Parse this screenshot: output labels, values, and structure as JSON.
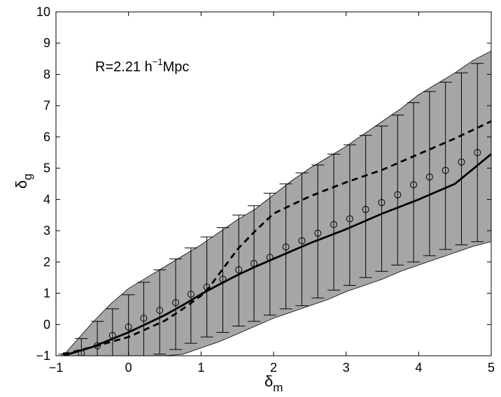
{
  "chart_data": {
    "type": "line",
    "title": "",
    "annotation": {
      "main": "R=2.21 h",
      "superscript": "−1",
      "tail": "Mpc"
    },
    "xlabel": {
      "main": "δ",
      "sub": "m"
    },
    "ylabel": {
      "main": "δ",
      "sub": "g"
    },
    "xlim": [
      -1,
      5
    ],
    "ylim": [
      -1,
      10
    ],
    "xticks": [
      -1,
      0,
      1,
      2,
      3,
      4,
      5
    ],
    "yticks": [
      -1,
      0,
      1,
      2,
      3,
      4,
      5,
      6,
      7,
      8,
      9,
      10
    ],
    "grid": false,
    "colors": {
      "band": "#a6a6a6",
      "line": "#000000"
    },
    "band": {
      "x": [
        -0.9,
        -0.75,
        -0.5,
        -0.25,
        0.0,
        0.25,
        0.5,
        0.75,
        1.0,
        1.25,
        1.5,
        1.75,
        2.0,
        2.25,
        2.5,
        2.75,
        3.0,
        3.25,
        3.5,
        3.75,
        4.0,
        4.25,
        4.5,
        4.75,
        5.0
      ],
      "upper": [
        -1.0,
        -0.6,
        0.05,
        0.65,
        1.15,
        1.5,
        1.85,
        2.2,
        2.55,
        2.95,
        3.35,
        3.7,
        4.15,
        4.6,
        5.0,
        5.35,
        5.7,
        6.1,
        6.5,
        6.9,
        7.35,
        7.7,
        8.05,
        8.45,
        8.75
      ],
      "lower": [
        -1.0,
        -1.0,
        -1.0,
        -1.0,
        -1.0,
        -1.0,
        -1.0,
        -0.95,
        -0.75,
        -0.55,
        -0.3,
        -0.05,
        0.2,
        0.4,
        0.6,
        0.8,
        1.05,
        1.25,
        1.45,
        1.7,
        1.9,
        2.1,
        2.3,
        2.5,
        2.65
      ]
    },
    "errorbars": {
      "x": [
        -0.88,
        -0.65,
        -0.43,
        -0.22,
        0.0,
        0.21,
        0.43,
        0.65,
        0.86,
        1.08,
        1.3,
        1.52,
        1.73,
        1.95,
        2.17,
        2.39,
        2.61,
        2.83,
        3.05,
        3.27,
        3.49,
        3.71,
        3.93,
        4.15,
        4.37,
        4.59,
        4.81
      ],
      "y": [
        -1.0,
        -0.92,
        -0.68,
        -0.35,
        -0.08,
        0.2,
        0.45,
        0.7,
        0.97,
        1.2,
        1.45,
        1.75,
        1.95,
        2.15,
        2.48,
        2.68,
        2.92,
        3.2,
        3.38,
        3.68,
        3.9,
        4.15,
        4.47,
        4.72,
        4.93,
        5.2,
        5.5
      ],
      "upper": [
        -0.95,
        -0.45,
        0.1,
        0.5,
        0.95,
        1.35,
        1.75,
        2.1,
        2.45,
        2.8,
        3.1,
        3.5,
        3.8,
        4.2,
        4.5,
        4.85,
        5.1,
        5.45,
        5.75,
        6.05,
        6.35,
        6.7,
        7.1,
        7.45,
        7.75,
        8.05,
        8.35
      ],
      "lower": [
        -1.0,
        -1.0,
        -1.0,
        -1.0,
        -1.0,
        -1.0,
        -0.95,
        -0.8,
        -0.6,
        -0.4,
        -0.25,
        -0.05,
        0.1,
        0.3,
        0.5,
        0.6,
        0.85,
        1.1,
        1.25,
        1.5,
        1.7,
        1.9,
        2.0,
        2.2,
        2.4,
        2.55,
        2.65
      ]
    },
    "series": [
      {
        "style": "solid",
        "x": [
          -0.9,
          -0.5,
          0.0,
          0.5,
          0.75,
          1.0,
          1.25,
          1.5,
          1.75,
          2.0,
          2.5,
          3.0,
          3.5,
          4.0,
          4.5,
          5.0
        ],
        "y": [
          -1.0,
          -0.72,
          -0.25,
          0.3,
          0.62,
          0.97,
          1.28,
          1.58,
          1.85,
          2.1,
          2.6,
          3.05,
          3.55,
          4.0,
          4.5,
          5.45
        ]
      },
      {
        "style": "dashed",
        "x": [
          -0.9,
          -0.5,
          0.0,
          0.5,
          0.75,
          1.0,
          1.1,
          1.25,
          1.5,
          1.75,
          2.0,
          2.5,
          3.0,
          3.5,
          4.0,
          4.5,
          5.0
        ],
        "y": [
          -0.95,
          -0.72,
          -0.4,
          0.12,
          0.5,
          0.92,
          1.15,
          1.62,
          2.4,
          3.0,
          3.55,
          4.1,
          4.55,
          4.95,
          5.45,
          5.95,
          6.5
        ]
      }
    ]
  }
}
